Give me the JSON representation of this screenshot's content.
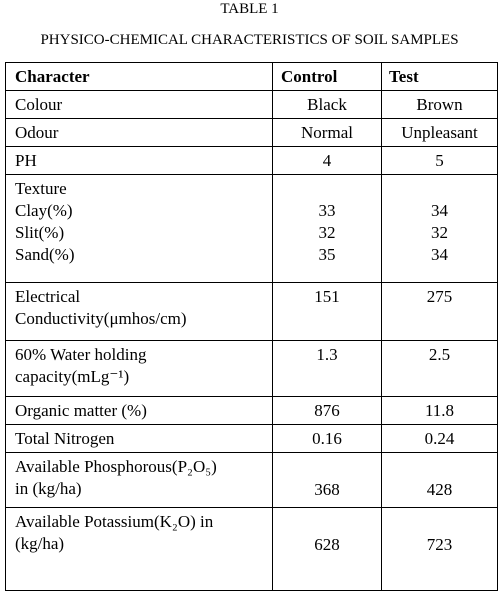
{
  "header": {
    "title": "TABLE 1",
    "subtitle": "PHYSICO-CHEMICAL CHARACTERISTICS OF SOIL SAMPLES"
  },
  "table": {
    "columns": [
      "Character",
      "Control",
      "Test"
    ],
    "rows": [
      {
        "character": [
          "Colour"
        ],
        "control": [
          "Black"
        ],
        "test": [
          "Brown"
        ]
      },
      {
        "character": [
          "Odour"
        ],
        "control": [
          "Normal"
        ],
        "test": [
          "Unpleasant"
        ]
      },
      {
        "character": [
          "PH"
        ],
        "control": [
          "4"
        ],
        "test": [
          "5"
        ]
      },
      {
        "character": [
          "Texture",
          "Clay(%)",
          "Slit(%)",
          "Sand(%)"
        ],
        "control": [
          "33",
          "32",
          "35"
        ],
        "test": [
          "34",
          "32",
          "34"
        ]
      },
      {
        "character": [
          "Electrical",
          "Conductivity(μmhos/cm)"
        ],
        "control": [
          "151"
        ],
        "test": [
          "275"
        ]
      },
      {
        "character": [
          "60% Water holding",
          "capacity(mLg⁻¹)"
        ],
        "control": [
          "1.3"
        ],
        "test": [
          "2.5"
        ]
      },
      {
        "character": [
          "Organic matter (%)"
        ],
        "control": [
          "876"
        ],
        "test": [
          "11.8"
        ]
      },
      {
        "character": [
          "Total Nitrogen"
        ],
        "control": [
          "0.16"
        ],
        "test": [
          "0.24"
        ]
      },
      {
        "character": [
          "Available Phosphorous(P₂O₅)",
          "in (kg/ha)"
        ],
        "control": [
          "368"
        ],
        "test": [
          "428"
        ]
      },
      {
        "character": [
          "Available Potassium(K₂O) in",
          "(kg/ha)"
        ],
        "control": [
          "628"
        ],
        "test": [
          "723"
        ]
      }
    ]
  }
}
